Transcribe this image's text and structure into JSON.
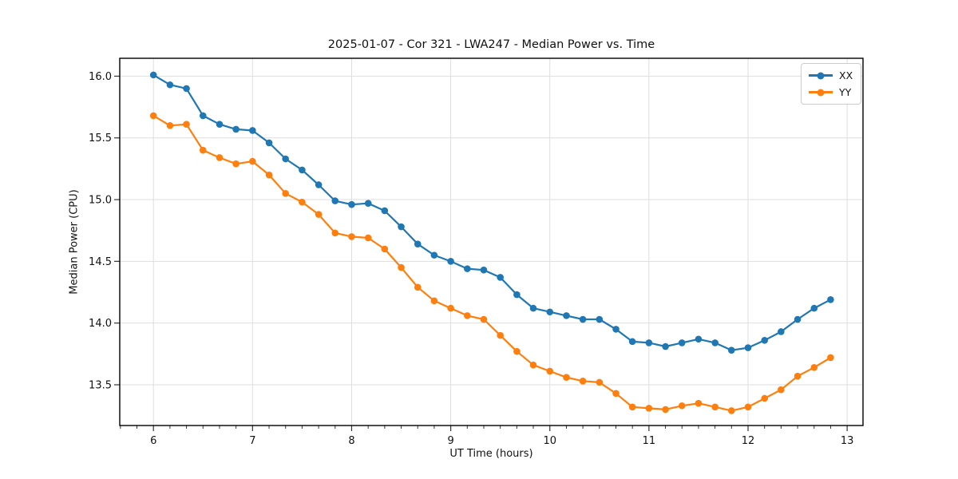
{
  "chart_data": {
    "type": "line",
    "title": "2025-01-07 - Cor 321 - LWA247 - Median Power vs. Time",
    "xlabel": "UT Time (hours)",
    "ylabel": "Median Power (CPU)",
    "xlim": [
      5.66,
      13.16
    ],
    "ylim": [
      13.17,
      16.145
    ],
    "xticks": [
      6,
      7,
      8,
      9,
      10,
      11,
      12,
      13
    ],
    "yticks": [
      13.5,
      14.0,
      14.5,
      15.0,
      15.5,
      16.0
    ],
    "x_minor_step": 0.16666667,
    "grid": true,
    "legend_position": "upper right",
    "x": [
      6.0,
      6.167,
      6.333,
      6.5,
      6.667,
      6.833,
      7.0,
      7.167,
      7.333,
      7.5,
      7.667,
      7.833,
      8.0,
      8.167,
      8.333,
      8.5,
      8.667,
      8.833,
      9.0,
      9.167,
      9.333,
      9.5,
      9.667,
      9.833,
      10.0,
      10.167,
      10.333,
      10.5,
      10.667,
      10.833,
      11.0,
      11.167,
      11.333,
      11.5,
      11.667,
      11.833,
      12.0,
      12.167,
      12.333,
      12.5,
      12.667,
      12.833
    ],
    "series": [
      {
        "name": "XX",
        "color": "#1f77b4",
        "values": [
          16.01,
          15.93,
          15.9,
          15.68,
          15.61,
          15.57,
          15.56,
          15.46,
          15.33,
          15.24,
          15.12,
          14.99,
          14.96,
          14.97,
          14.91,
          14.78,
          14.64,
          14.55,
          14.5,
          14.44,
          14.43,
          14.37,
          14.23,
          14.12,
          14.09,
          14.06,
          14.03,
          14.03,
          13.95,
          13.85,
          13.84,
          13.81,
          13.84,
          13.87,
          13.84,
          13.78,
          13.8,
          13.86,
          13.93,
          14.03,
          14.12,
          14.19
        ]
      },
      {
        "name": "YY",
        "color": "#ff7f0e",
        "values": [
          15.68,
          15.6,
          15.61,
          15.4,
          15.34,
          15.29,
          15.31,
          15.2,
          15.05,
          14.98,
          14.88,
          14.73,
          14.7,
          14.69,
          14.6,
          14.45,
          14.29,
          14.18,
          14.12,
          14.06,
          14.03,
          13.9,
          13.77,
          13.66,
          13.61,
          13.56,
          13.53,
          13.52,
          13.43,
          13.32,
          13.31,
          13.3,
          13.33,
          13.35,
          13.32,
          13.29,
          13.32,
          13.39,
          13.46,
          13.57,
          13.64,
          13.72
        ]
      }
    ],
    "styles": {
      "grid_color": "#dedede",
      "spine_color": "#000000",
      "tick_color": "#333333",
      "text_color": "#111111"
    }
  }
}
